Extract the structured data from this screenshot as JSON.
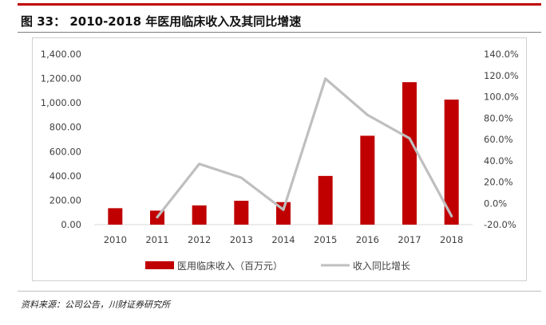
{
  "header": {
    "title": "图 33： 2010-2018 年医用临床收入及其同比增速"
  },
  "footer": {
    "source": "资料来源：公司公告，川财证券研究所"
  },
  "colors": {
    "bar": "#c00000",
    "line": "#bfbfbf",
    "accent": "#c00000"
  },
  "chart_data": {
    "type": "bar",
    "categories": [
      "2010",
      "2011",
      "2012",
      "2013",
      "2014",
      "2015",
      "2016",
      "2017",
      "2018"
    ],
    "series": [
      {
        "name": "医用临床收入（百万元）",
        "type": "bar",
        "axis": "left",
        "values": [
          135,
          115,
          158,
          196,
          185,
          400,
          730,
          1170,
          1027
        ]
      },
      {
        "name": "收入同比增长",
        "type": "line",
        "axis": "right",
        "values": [
          null,
          -13,
          37,
          24,
          -6,
          117,
          83,
          61,
          -12
        ]
      }
    ],
    "ylim_left": [
      0,
      1400
    ],
    "yticks_left": [
      "1,400.00",
      "1,200.00",
      "1,000.00",
      "800.00",
      "600.00",
      "400.00",
      "200.00",
      "0.00"
    ],
    "ylim_right": [
      -20,
      140
    ],
    "yticks_right": [
      "140.0%",
      "120.0%",
      "100.0%",
      "80.0%",
      "60.0%",
      "40.0%",
      "20.0%",
      "0.0%",
      "-20.0%"
    ],
    "grid": false,
    "legend": "bottom"
  }
}
